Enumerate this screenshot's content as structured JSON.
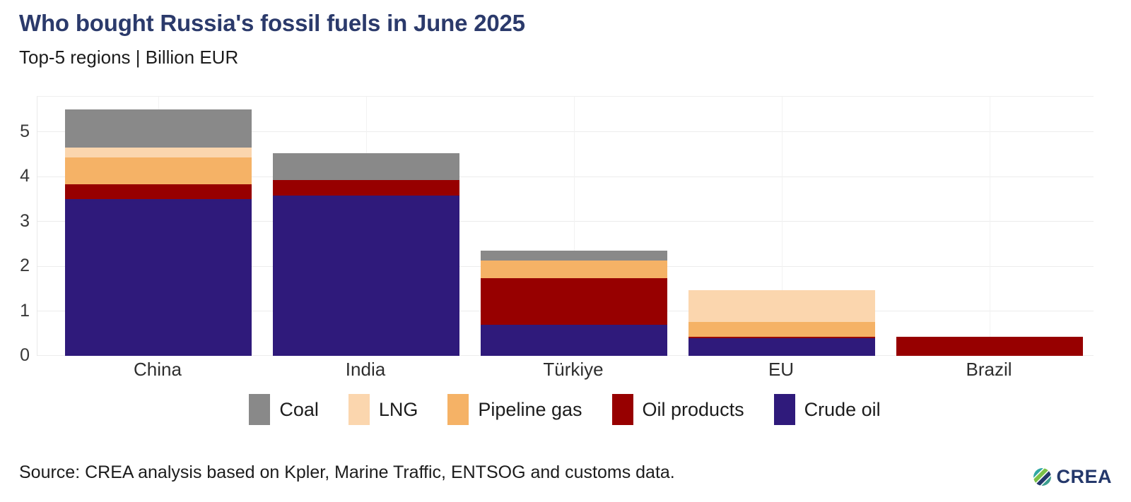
{
  "header": {
    "title": "Who bought Russia's fossil fuels in June 2025",
    "subtitle": "Top-5 regions | Billion EUR"
  },
  "chart_data": {
    "type": "bar",
    "stacked": true,
    "title": "Who bought Russia's fossil fuels in June 2025",
    "subtitle": "Top-5 regions | Billion EUR",
    "unit": "Billion EUR",
    "categories": [
      "China",
      "India",
      "Türkiye",
      "EU",
      "Brazil"
    ],
    "series": [
      {
        "name": "Crude oil",
        "color": "#2f1a7b",
        "values": [
          3.5,
          3.58,
          0.7,
          0.39,
          0
        ]
      },
      {
        "name": "Oil products",
        "color": "#970000",
        "values": [
          0.32,
          0.34,
          1.04,
          0.03,
          0.43
        ]
      },
      {
        "name": "Pipeline gas",
        "color": "#f5b266",
        "values": [
          0.61,
          0,
          0.39,
          0.33,
          0
        ]
      },
      {
        "name": "LNG",
        "color": "#fbd6ae",
        "values": [
          0.22,
          0,
          0,
          0.72,
          0
        ]
      },
      {
        "name": "Coal",
        "color": "#898989",
        "values": [
          0.85,
          0.6,
          0.22,
          0,
          0
        ]
      }
    ],
    "totals": [
      5.5,
      4.52,
      2.35,
      1.47,
      0.43
    ],
    "legend_order": [
      "Coal",
      "LNG",
      "Pipeline gas",
      "Oil products",
      "Crude oil"
    ],
    "legend_position": "bottom-center",
    "yticks": [
      0,
      1,
      2,
      3,
      4,
      5
    ],
    "ylim": [
      0,
      5.78
    ],
    "grid": "horizontal-and-category-center",
    "xlabel": "",
    "ylabel": ""
  },
  "colors": {
    "title": "#2b3a6b",
    "logo": "#24386b",
    "grid": "#ececec"
  },
  "footer": {
    "source": "Source: CREA analysis based on Kpler, Marine Traffic, ENTSOG and customs data.",
    "logo_text": "CREA"
  }
}
